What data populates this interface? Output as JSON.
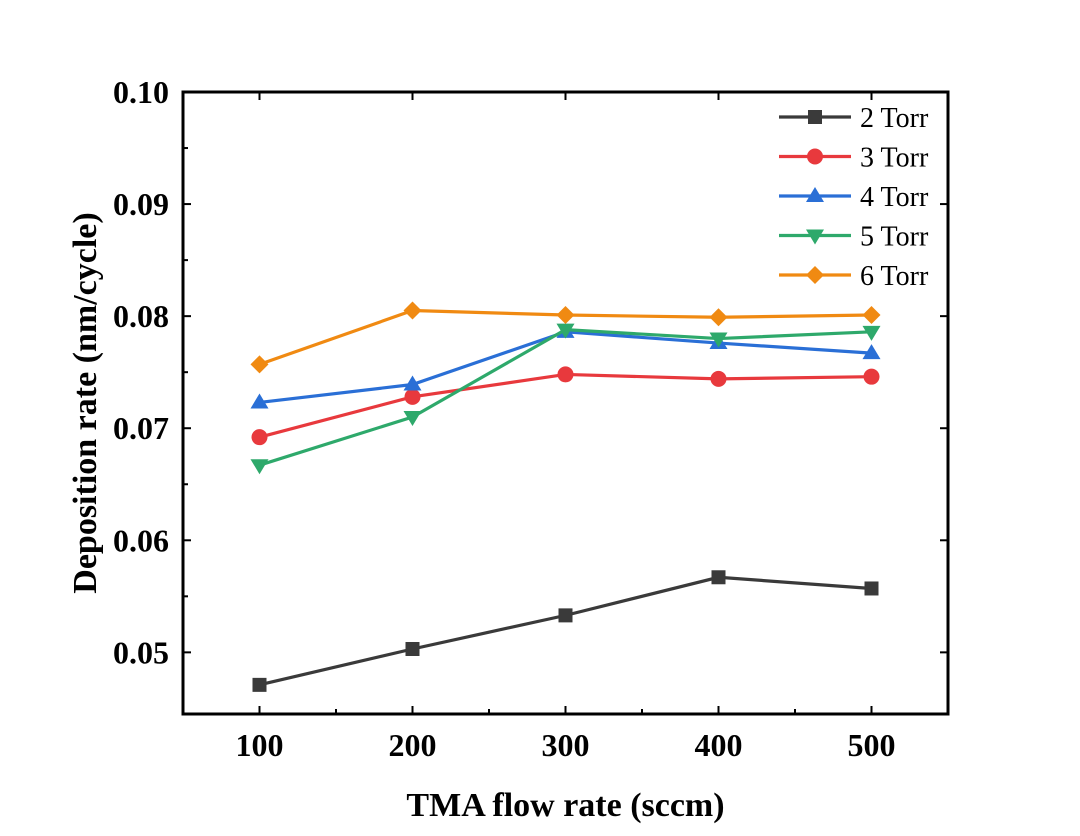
{
  "chart_data": {
    "type": "line",
    "xlabel": "TMA flow rate (sccm)",
    "ylabel": "Deposition rate (nm/cycle)",
    "x": [
      100,
      200,
      300,
      400,
      500
    ],
    "x_tick_labels": [
      "100",
      "200",
      "300",
      "400",
      "500"
    ],
    "y_tick_labels": [
      "0.05",
      "0.06",
      "0.07",
      "0.08",
      "0.09",
      "0.10"
    ],
    "y_ticks": [
      0.05,
      0.06,
      0.07,
      0.08,
      0.09,
      0.1
    ],
    "xlim": [
      50,
      550
    ],
    "ylim": [
      0.0445,
      0.1
    ],
    "grid": false,
    "legend_position": "top-right",
    "series": [
      {
        "name": "2 Torr",
        "color": "#3a3a3a",
        "marker": "square",
        "values": [
          0.0471,
          0.0503,
          0.0533,
          0.0567,
          0.0557
        ]
      },
      {
        "name": "3 Torr",
        "color": "#e8393d",
        "marker": "circle",
        "values": [
          0.0692,
          0.0728,
          0.0748,
          0.0744,
          0.0746
        ]
      },
      {
        "name": "4 Torr",
        "color": "#2a6fd6",
        "marker": "triangle-up",
        "values": [
          0.0723,
          0.0739,
          0.0786,
          0.0776,
          0.0767
        ]
      },
      {
        "name": "5 Torr",
        "color": "#2ea96b",
        "marker": "triangle-down",
        "values": [
          0.0667,
          0.071,
          0.0788,
          0.078,
          0.0786
        ]
      },
      {
        "name": "6 Torr",
        "color": "#f08a12",
        "marker": "diamond",
        "values": [
          0.0757,
          0.0805,
          0.0801,
          0.0799,
          0.0801
        ]
      }
    ]
  }
}
